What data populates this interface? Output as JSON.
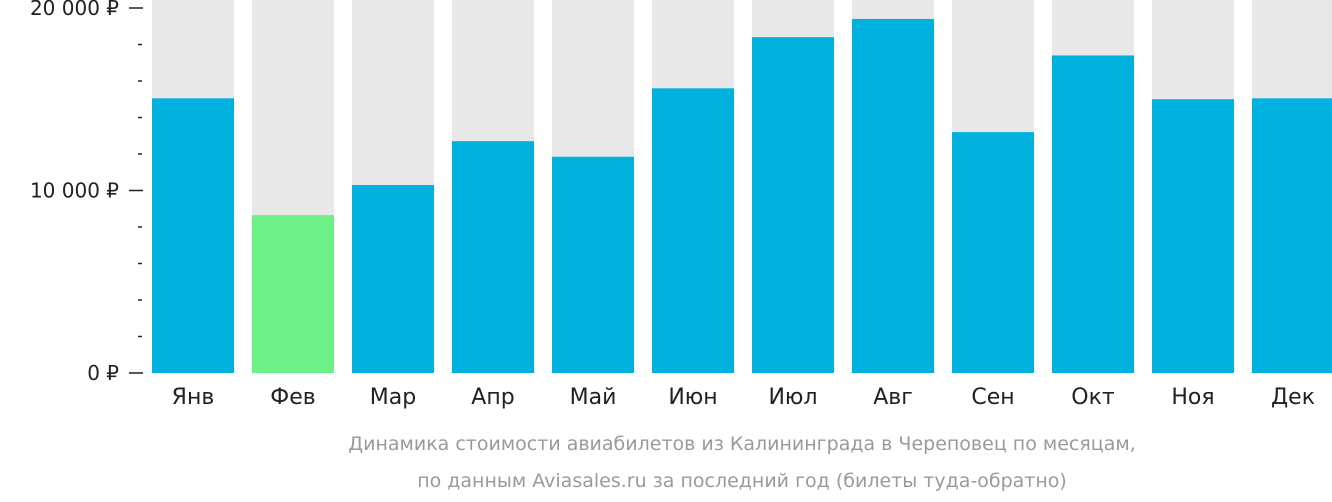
{
  "chart_data": {
    "type": "bar",
    "categories": [
      "Янв",
      "Фев",
      "Мар",
      "Апр",
      "Май",
      "Июн",
      "Июл",
      "Авг",
      "Сен",
      "Окт",
      "Ноя",
      "Дек"
    ],
    "values": [
      15050,
      8650,
      10300,
      12700,
      11850,
      15600,
      18400,
      19400,
      13200,
      17400,
      15000,
      15050
    ],
    "highlight_index": 1,
    "ylim": [
      0,
      20000
    ],
    "yticks": [
      {
        "value": 0,
        "label": "0 ₽"
      },
      {
        "value": 10000,
        "label": "10 000 ₽"
      },
      {
        "value": 20000,
        "label": "20 000 ₽"
      }
    ],
    "minor_tick_step": 2000,
    "grid": false,
    "caption_lines": [
      "Динамика стоимости авиабилетов из Калининграда в Череповец по месяцам,",
      "по данным Aviasales.ru за последний год (билеты туда-обратно)"
    ]
  },
  "colors": {
    "bar": "#00b0dd",
    "bar_highlight": "#6cf087",
    "bar_background": "#e8e8e8",
    "axis": "#222222",
    "caption": "#9a9a9a"
  }
}
